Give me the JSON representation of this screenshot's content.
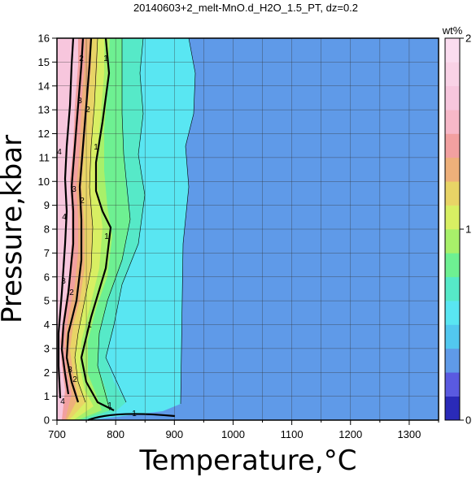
{
  "chart_data": {
    "type": "heatmap",
    "title": "20140603+2_melt-MnO.d_H2O_1.5_PT, dz=0.2",
    "xlabel": "Temperature,°C",
    "ylabel": "Pressure,kbar",
    "xlim": [
      700,
      1350
    ],
    "ylim": [
      0,
      16
    ],
    "x_ticks": [
      700,
      800,
      900,
      1000,
      1100,
      1200,
      1300
    ],
    "y_ticks": [
      0,
      1,
      2,
      3,
      4,
      5,
      6,
      7,
      8,
      9,
      10,
      11,
      12,
      13,
      14,
      15,
      16
    ],
    "grid": true,
    "colorbar": {
      "label": "wt%",
      "min": 0,
      "max": 2,
      "tick_labels": [
        "0",
        "1",
        "2"
      ],
      "bands": [
        "#2a2ab8",
        "#5a5ae0",
        "#5f9ae8",
        "#52c8ef",
        "#59e6f2",
        "#56e9c8",
        "#6ef092",
        "#a8f06a",
        "#d8ef63",
        "#e8d466",
        "#eeb07a",
        "#f2a0a0",
        "#f7b8c8",
        "#f7c6dd",
        "#f9d2e6",
        "#fbdcef"
      ]
    },
    "contour_labels": [
      "1",
      "1",
      "1",
      "1",
      "1",
      "1",
      "2",
      "2",
      "2",
      "2",
      "2",
      "3",
      "3",
      "3",
      "3",
      "4",
      "4",
      "4"
    ],
    "zones": [
      {
        "name": "1.0-1.2 wt%",
        "color": "#59e6f2",
        "T_at_P": [
          [
            930,
            0.2
          ],
          [
            950,
            2
          ],
          [
            955,
            5
          ],
          [
            960,
            8
          ],
          [
            960,
            11
          ],
          [
            940,
            14
          ],
          [
            930,
            16
          ]
        ]
      },
      {
        "name": "0.8-1.0 wt%",
        "color": "#5f9ae8",
        "T_at_P": [
          [
            910,
            0.6
          ],
          [
            1000,
            0
          ]
        ]
      }
    ]
  }
}
